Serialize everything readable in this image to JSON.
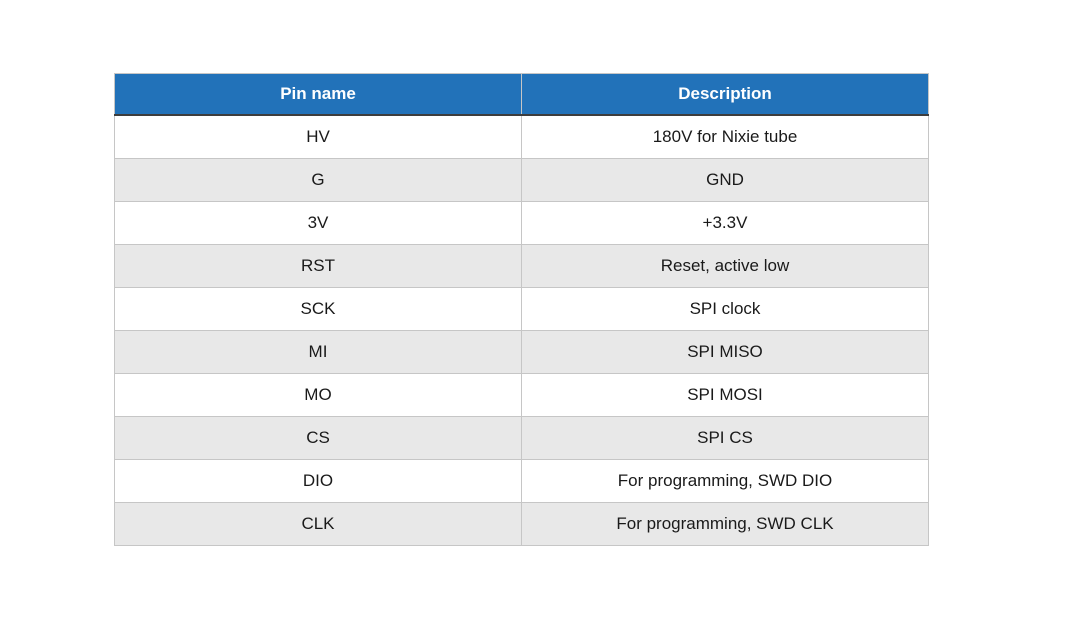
{
  "colors": {
    "header_background": "#2272b9",
    "header_text": "#ffffff",
    "row_alt_background": "#e8e8e8",
    "row_background": "#ffffff",
    "border": "#c6c6c6",
    "header_bottom_border": "#3d3d3d",
    "cell_text": "#1a1a1a"
  },
  "table": {
    "headers": [
      "Pin name",
      "Description"
    ],
    "rows": [
      {
        "pin": "HV",
        "description": "180V for Nixie tube"
      },
      {
        "pin": "G",
        "description": "GND"
      },
      {
        "pin": "3V",
        "description": "+3.3V"
      },
      {
        "pin": "RST",
        "description": "Reset, active low"
      },
      {
        "pin": "SCK",
        "description": "SPI clock"
      },
      {
        "pin": "MI",
        "description": "SPI MISO"
      },
      {
        "pin": "MO",
        "description": "SPI MOSI"
      },
      {
        "pin": "CS",
        "description": "SPI CS"
      },
      {
        "pin": "DIO",
        "description": "For programming, SWD DIO"
      },
      {
        "pin": "CLK",
        "description": "For programming, SWD CLK"
      }
    ]
  }
}
